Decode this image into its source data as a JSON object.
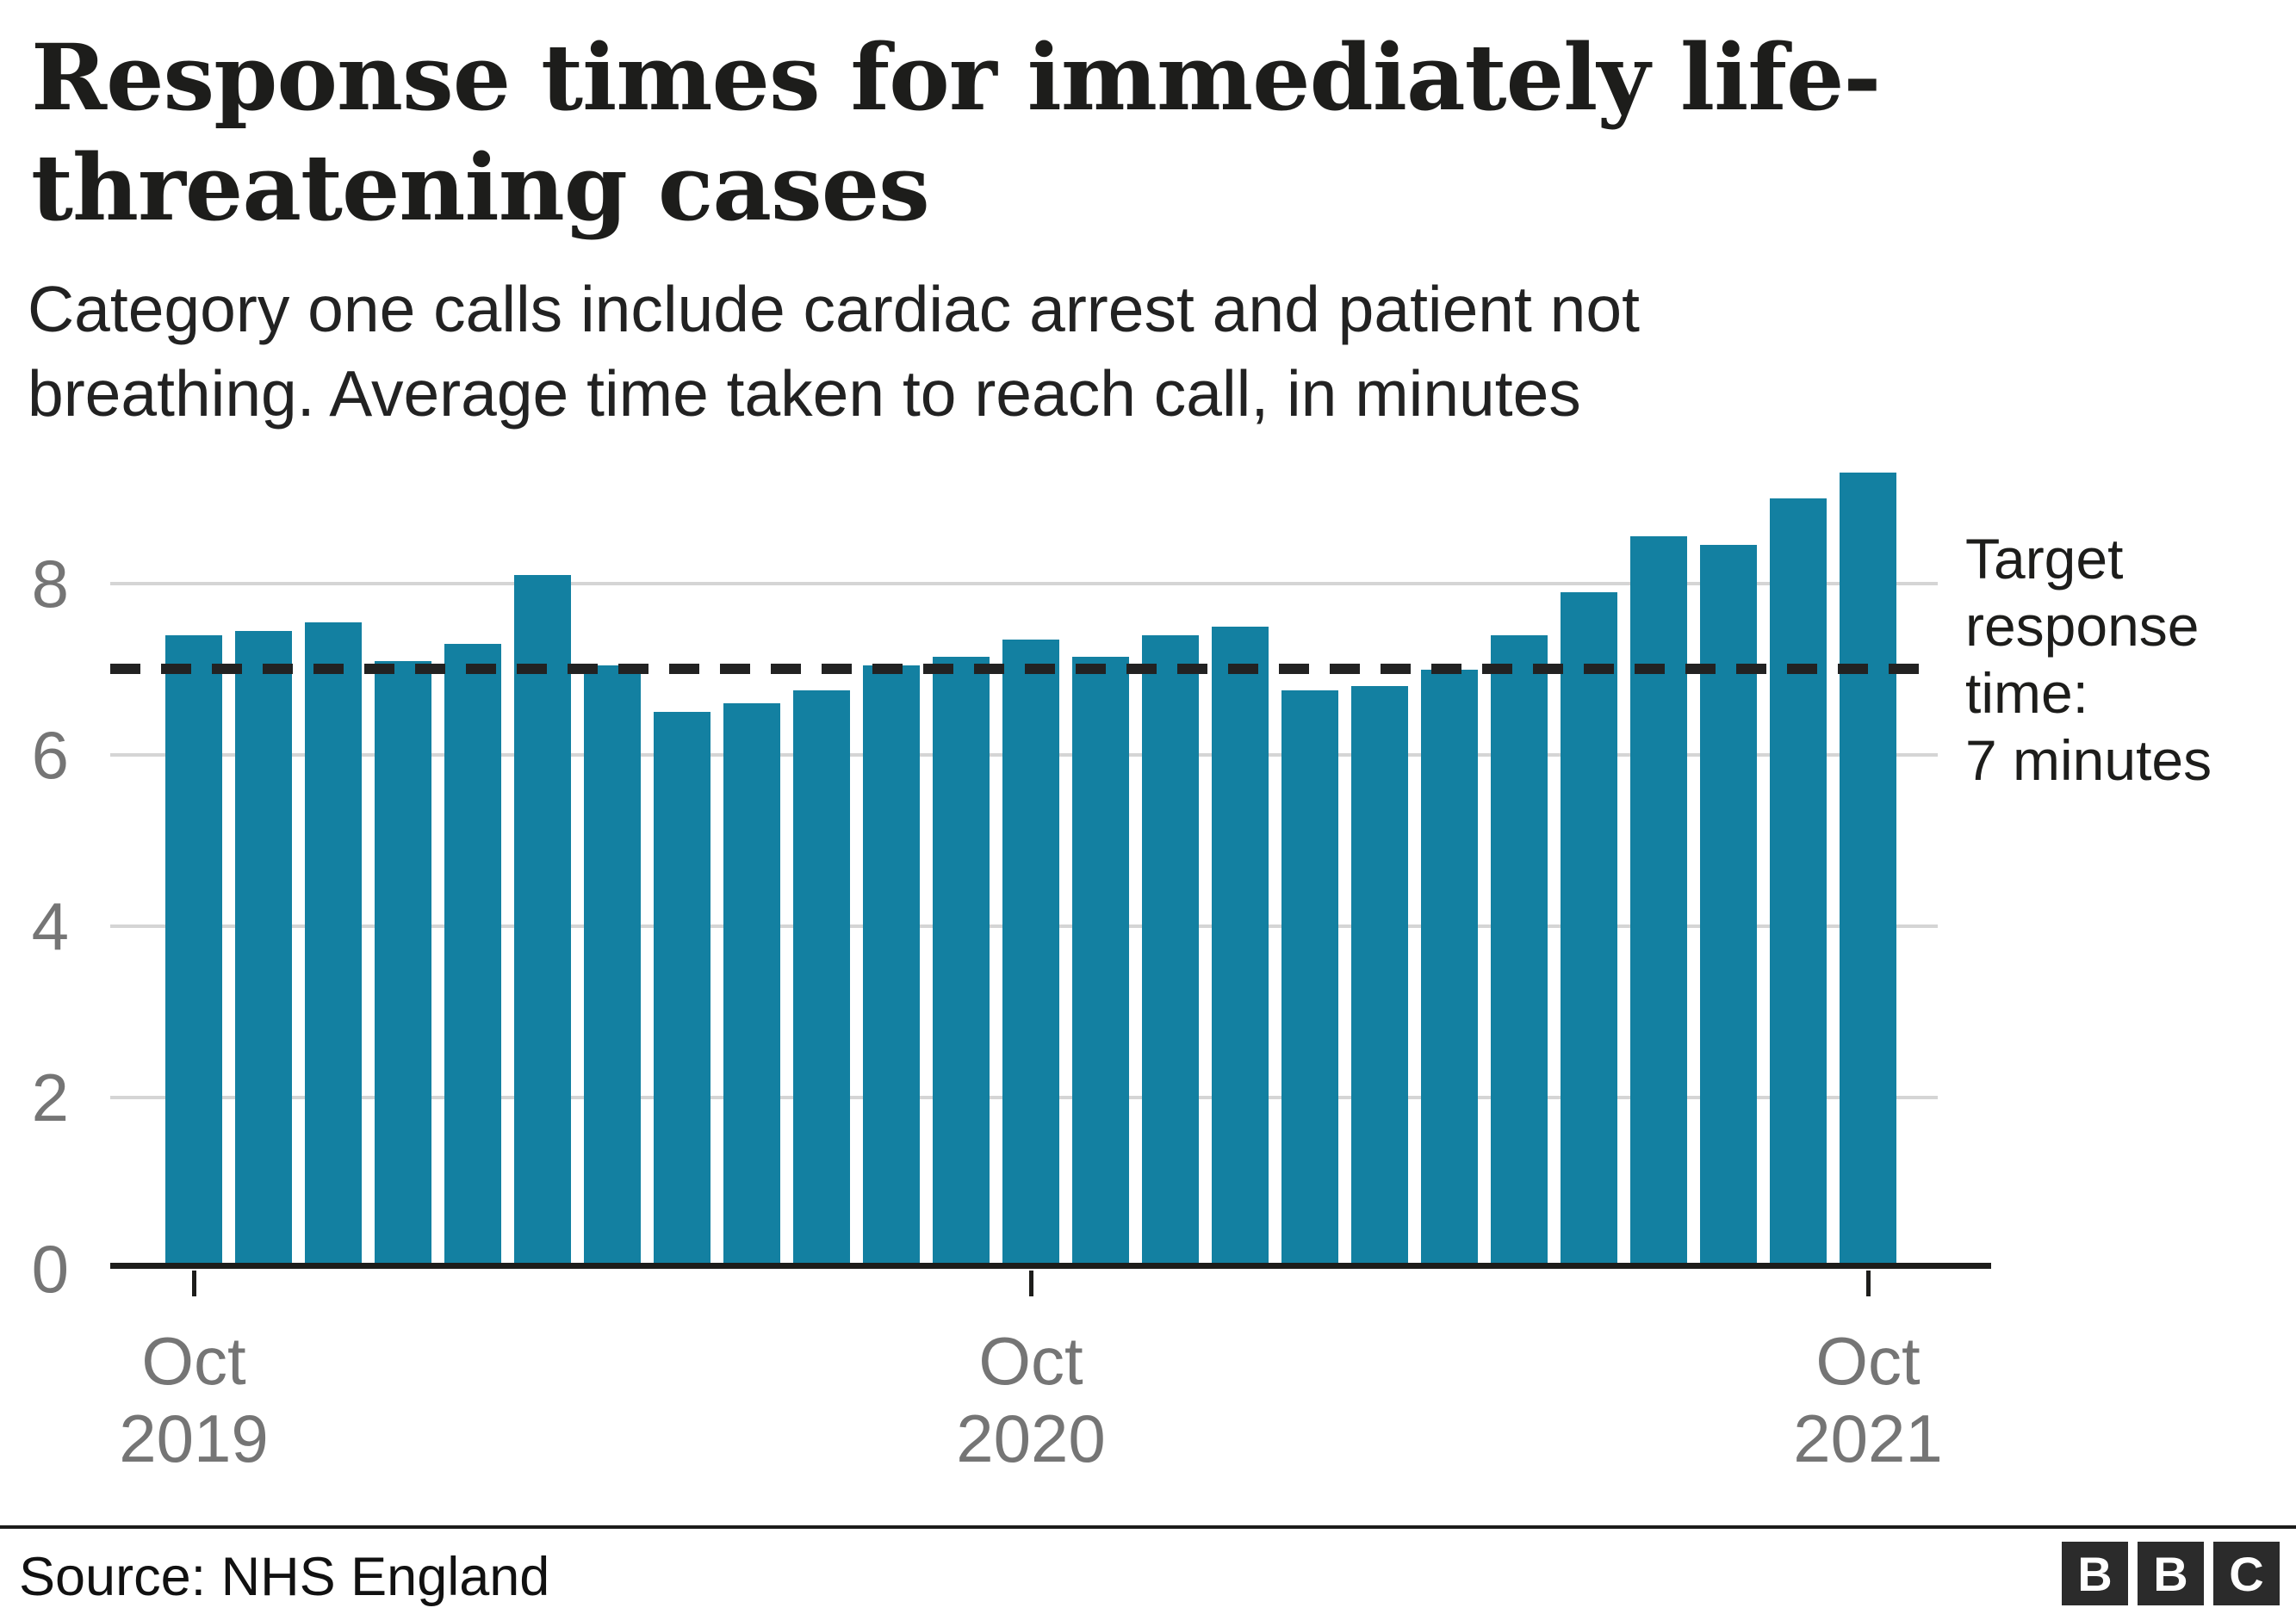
{
  "header": {
    "title": "Response times for immediately life-\nthreatening cases",
    "subtitle": "Category one calls include cardiac arrest and patient not\nbreathing. Average time taken to reach call, in minutes"
  },
  "target_annotation": {
    "label": "Target\nresponse\ntime:\n7 minutes"
  },
  "footer": {
    "source": "Source: NHS England",
    "logo_letters": [
      "B",
      "B",
      "C"
    ]
  },
  "colors": {
    "bar": "#1380a1",
    "target_line": "#222222",
    "gridline": "#d5d5d5",
    "axis_line": "#1d1d1b",
    "axis_text": "#757575"
  },
  "chart_data": {
    "type": "bar",
    "title": "Response times for immediately life-threatening cases",
    "subtitle": "Category one calls include cardiac arrest and patient not breathing. Average time taken to reach call, in minutes",
    "unit": "minutes",
    "x_start": "Oct 2019",
    "x_end": "Oct 2021",
    "frequency": "monthly",
    "values": [
      7.4,
      7.45,
      7.55,
      7.1,
      7.3,
      8.1,
      7.05,
      6.5,
      6.6,
      6.75,
      7.05,
      7.15,
      7.35,
      7.15,
      7.4,
      7.5,
      6.75,
      6.8,
      7.0,
      7.4,
      7.9,
      8.55,
      8.45,
      9.0,
      9.3
    ],
    "x_tick_labels": [
      "Oct 2019",
      "Oct 2020",
      "Oct 2021"
    ],
    "x_tick_bar_indices": [
      0,
      12,
      24
    ],
    "yticks": [
      8,
      6,
      4,
      2,
      0
    ],
    "ylim": [
      0,
      9.6
    ],
    "grid": "horizontal",
    "legend": "none",
    "target_line": {
      "value": 7,
      "style": "dashed",
      "label": "Target response time: 7 minutes"
    },
    "source": "NHS England"
  }
}
